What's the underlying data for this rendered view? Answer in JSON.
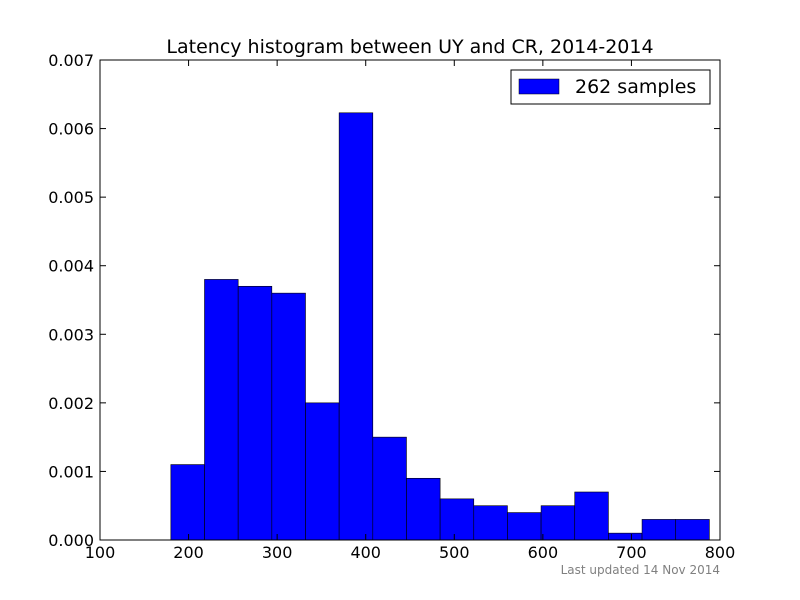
{
  "chart_data": {
    "type": "bar",
    "title": "Latency histogram between UY and CR, 2014-2014",
    "xlabel": "",
    "ylabel": "",
    "xlim": [
      100,
      800
    ],
    "ylim": [
      0,
      0.007
    ],
    "grid": false,
    "legend_position": "top-right",
    "x_ticks": [
      "100",
      "200",
      "300",
      "400",
      "500",
      "600",
      "700",
      "800"
    ],
    "y_ticks": [
      "0.000",
      "0.001",
      "0.002",
      "0.003",
      "0.004",
      "0.005",
      "0.006",
      "0.007"
    ],
    "bins": [
      {
        "start": 180,
        "end": 218,
        "density": 0.0011
      },
      {
        "start": 218,
        "end": 256,
        "density": 0.0038
      },
      {
        "start": 256,
        "end": 294,
        "density": 0.0037
      },
      {
        "start": 294,
        "end": 332,
        "density": 0.0036
      },
      {
        "start": 332,
        "end": 370,
        "density": 0.002
      },
      {
        "start": 370,
        "end": 408,
        "density": 0.00623
      },
      {
        "start": 408,
        "end": 446,
        "density": 0.0015
      },
      {
        "start": 446,
        "end": 484,
        "density": 0.0009
      },
      {
        "start": 484,
        "end": 522,
        "density": 0.0006
      },
      {
        "start": 522,
        "end": 560,
        "density": 0.0005
      },
      {
        "start": 560,
        "end": 598,
        "density": 0.0004
      },
      {
        "start": 598,
        "end": 636,
        "density": 0.0005
      },
      {
        "start": 636,
        "end": 674,
        "density": 0.0007
      },
      {
        "start": 674,
        "end": 712,
        "density": 0.0001
      },
      {
        "start": 712,
        "end": 750,
        "density": 0.0003
      },
      {
        "start": 750,
        "end": 788,
        "density": 0.0003
      }
    ],
    "series": [
      {
        "name": "262 samples",
        "color": "#0000ff"
      }
    ],
    "footnote": "Last updated 14 Nov 2014"
  }
}
